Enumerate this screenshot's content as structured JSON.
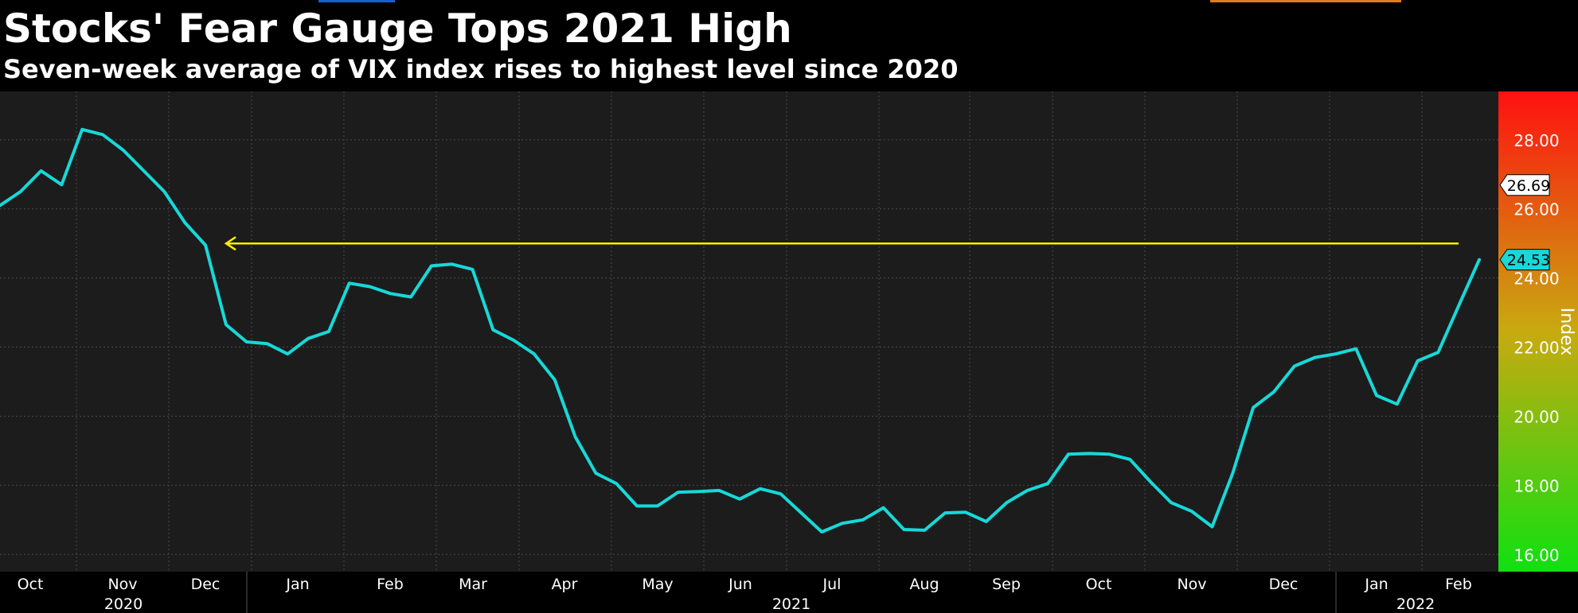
{
  "title": "Stocks' Fear Gauge Tops 2021 High",
  "subtitle": "Seven-week average of VIX index rises to highest level since 2020",
  "colors": {
    "line": "#18d8d8",
    "arrow": "#ffee00",
    "plot_bg": "#1c1c1c",
    "scale_top": "#ff1010",
    "scale_mid": "#c8aa10",
    "scale_bottom": "#10e010"
  },
  "chart_data": {
    "type": "line",
    "title": "Stocks' Fear Gauge Tops 2021 High",
    "subtitle": "Seven-week average of VIX index rises to highest level since 2020",
    "ylabel": "Index",
    "xlabel": "",
    "ylim": [
      15.5,
      29.4
    ],
    "yticks": [
      16,
      18,
      20,
      22,
      24,
      26,
      28
    ],
    "ytick_labels": [
      "16.00",
      "18.00",
      "20.00",
      "22.00",
      "24.00",
      "26.00",
      "28.00"
    ],
    "month_labels": [
      "Oct",
      "Nov",
      "Dec",
      "Jan",
      "Feb",
      "Mar",
      "Apr",
      "May",
      "Jun",
      "Jul",
      "Aug",
      "Sep",
      "Oct",
      "Nov",
      "Dec",
      "Jan",
      "Feb"
    ],
    "year_labels": [
      "2020",
      "2021",
      "2022"
    ],
    "grid": true,
    "series": [
      {
        "values": [
          26.1,
          26.5,
          27.1,
          26.7,
          28.3,
          28.15,
          27.7,
          27.1,
          26.5,
          25.6,
          24.95,
          22.65,
          22.15,
          22.1,
          21.8,
          22.25,
          22.45,
          23.85,
          23.75,
          23.55,
          23.45,
          24.35,
          24.4,
          24.25,
          22.5,
          22.2,
          21.8,
          21.05,
          19.4,
          18.35,
          18.05,
          17.4,
          17.4,
          17.8,
          17.82,
          17.85,
          17.6,
          17.9,
          17.75,
          17.2,
          16.65,
          16.9,
          17.0,
          17.35,
          16.72,
          16.7,
          17.2,
          17.22,
          16.95,
          17.5,
          17.85,
          18.05,
          18.9,
          18.92,
          18.9,
          18.75,
          18.1,
          17.5,
          17.25,
          16.8,
          18.35,
          20.25,
          20.7,
          21.45,
          21.7,
          21.8,
          21.95,
          20.6,
          20.35,
          21.6,
          21.85,
          23.2,
          24.53
        ]
      }
    ],
    "reference_line": {
      "value": 25.0,
      "color": "yellow",
      "arrow": "left"
    },
    "value_labels": [
      {
        "value": 26.69,
        "text": "26.69",
        "style": "white"
      },
      {
        "value": 24.53,
        "text": "24.53",
        "style": "cyan"
      }
    ]
  }
}
